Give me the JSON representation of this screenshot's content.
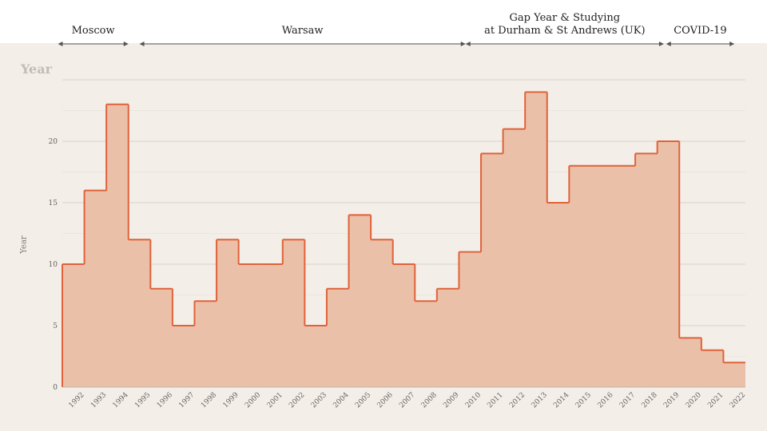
{
  "periods": [
    {
      "label_lines": [
        "Moscow"
      ],
      "start": 1991.8,
      "end": 1995.0
    },
    {
      "label_lines": [
        "Warsaw"
      ],
      "start": 1995.5,
      "end": 2010.3
    },
    {
      "label_lines": [
        "Gap Year & Studying",
        "at Durham & St Andrews (UK)"
      ],
      "start": 2010.3,
      "end": 2019.3
    },
    {
      "label_lines": [
        "COVID-19"
      ],
      "start": 2019.4,
      "end": 2022.5
    }
  ],
  "chart_data": {
    "type": "area",
    "step": true,
    "title": "Year",
    "ylabel": "Year",
    "xlabel": "",
    "x": [
      "1992",
      "1993",
      "1994",
      "1995",
      "1996",
      "1997",
      "1998",
      "1999",
      "2000",
      "2001",
      "2002",
      "2003",
      "2004",
      "2005",
      "2006",
      "2007",
      "2008",
      "2009",
      "2010",
      "2011",
      "2012",
      "2013",
      "2014",
      "2015",
      "2016",
      "2017",
      "2018",
      "2019",
      "2020",
      "2021",
      "2022"
    ],
    "values": [
      10,
      16,
      23,
      12,
      8,
      5,
      7,
      12,
      10,
      10,
      12,
      5,
      8,
      14,
      12,
      10,
      7,
      8,
      11,
      19,
      21,
      24,
      15,
      18,
      18,
      18,
      19,
      20,
      4,
      3,
      2
    ],
    "yticks": [
      0,
      5,
      10,
      15,
      20
    ],
    "ylim": [
      0,
      25
    ],
    "grid": true,
    "colors": {
      "fill": "#ebc0a8",
      "line": "#e0623a",
      "grid": "#d8d2ca"
    }
  }
}
